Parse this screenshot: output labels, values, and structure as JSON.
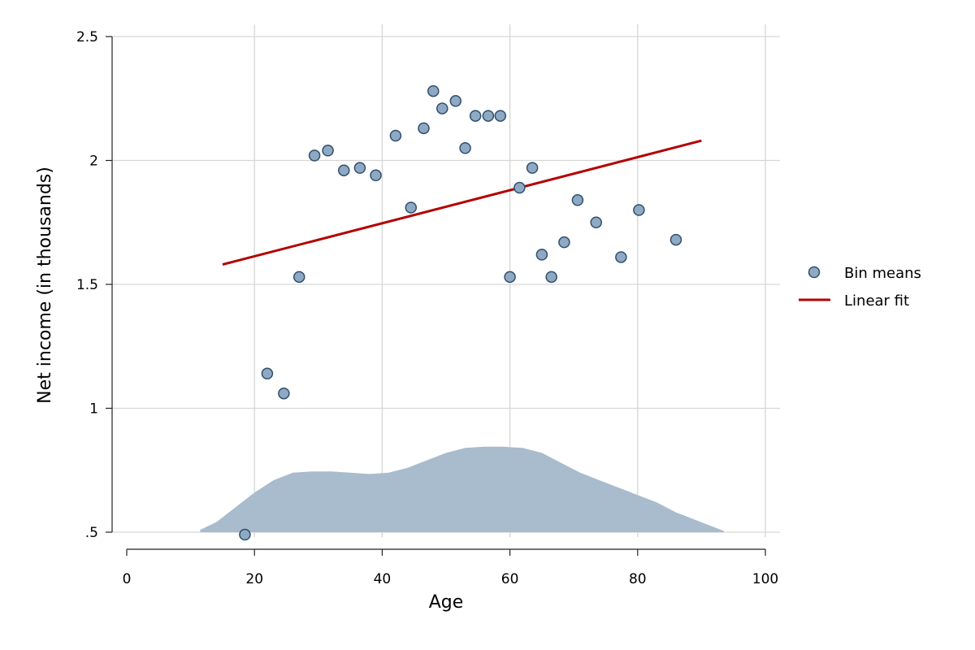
{
  "chart_data": {
    "type": "scatter",
    "xlabel": "Age",
    "ylabel": "Net income (in thousands)",
    "xlim": [
      0,
      100
    ],
    "ylim": [
      0.5,
      2.5
    ],
    "x_ticks": [
      {
        "value": 0,
        "label": "0"
      },
      {
        "value": 20,
        "label": "20"
      },
      {
        "value": 40,
        "label": "40"
      },
      {
        "value": 60,
        "label": "60"
      },
      {
        "value": 80,
        "label": "80"
      },
      {
        "value": 100,
        "label": "100"
      }
    ],
    "y_ticks": [
      {
        "value": 0.5,
        "label": ".5"
      },
      {
        "value": 1,
        "label": "1"
      },
      {
        "value": 1.5,
        "label": "1.5"
      },
      {
        "value": 2,
        "label": "2"
      },
      {
        "value": 2.5,
        "label": "2.5"
      }
    ],
    "grid": true,
    "legend_position": "right",
    "series": [
      {
        "name": "Bin means",
        "type": "scatter",
        "color": "#8fa9c5",
        "edge_color": "#2f4f6b",
        "points": [
          [
            18.5,
            0.49
          ],
          [
            22.0,
            1.14
          ],
          [
            24.6,
            1.06
          ],
          [
            27.0,
            1.53
          ],
          [
            29.4,
            2.02
          ],
          [
            31.5,
            2.04
          ],
          [
            34.0,
            1.96
          ],
          [
            36.5,
            1.97
          ],
          [
            39.0,
            1.94
          ],
          [
            42.1,
            2.1
          ],
          [
            44.5,
            1.81
          ],
          [
            46.5,
            2.13
          ],
          [
            48.0,
            2.28
          ],
          [
            49.4,
            2.21
          ],
          [
            51.5,
            2.24
          ],
          [
            53.0,
            2.05
          ],
          [
            54.6,
            2.18
          ],
          [
            56.6,
            2.18
          ],
          [
            58.5,
            2.18
          ],
          [
            60.0,
            1.53
          ],
          [
            61.5,
            1.89
          ],
          [
            63.5,
            1.97
          ],
          [
            65.0,
            1.62
          ],
          [
            66.5,
            1.53
          ],
          [
            68.5,
            1.67
          ],
          [
            70.6,
            1.84
          ],
          [
            73.5,
            1.75
          ],
          [
            77.4,
            1.61
          ],
          [
            80.2,
            1.8
          ],
          [
            86.0,
            1.68
          ]
        ]
      },
      {
        "name": "Linear fit",
        "type": "line",
        "color": "#b30000",
        "points": [
          [
            15,
            1.58
          ],
          [
            90,
            2.08
          ]
        ]
      }
    ],
    "density": {
      "color": "#a9bccd",
      "baseline": 0.5,
      "points": [
        [
          11.5,
          0.51
        ],
        [
          14,
          0.54
        ],
        [
          17,
          0.6
        ],
        [
          20,
          0.66
        ],
        [
          23,
          0.71
        ],
        [
          26,
          0.74
        ],
        [
          29,
          0.745
        ],
        [
          32,
          0.745
        ],
        [
          35,
          0.74
        ],
        [
          38,
          0.735
        ],
        [
          41,
          0.74
        ],
        [
          44,
          0.76
        ],
        [
          47,
          0.79
        ],
        [
          50,
          0.82
        ],
        [
          53,
          0.84
        ],
        [
          56,
          0.845
        ],
        [
          59,
          0.845
        ],
        [
          62,
          0.84
        ],
        [
          65,
          0.82
        ],
        [
          68,
          0.78
        ],
        [
          71,
          0.74
        ],
        [
          74,
          0.71
        ],
        [
          77,
          0.68
        ],
        [
          80,
          0.65
        ],
        [
          83,
          0.62
        ],
        [
          86,
          0.58
        ],
        [
          89,
          0.55
        ],
        [
          91,
          0.53
        ],
        [
          93.5,
          0.505
        ]
      ]
    }
  }
}
